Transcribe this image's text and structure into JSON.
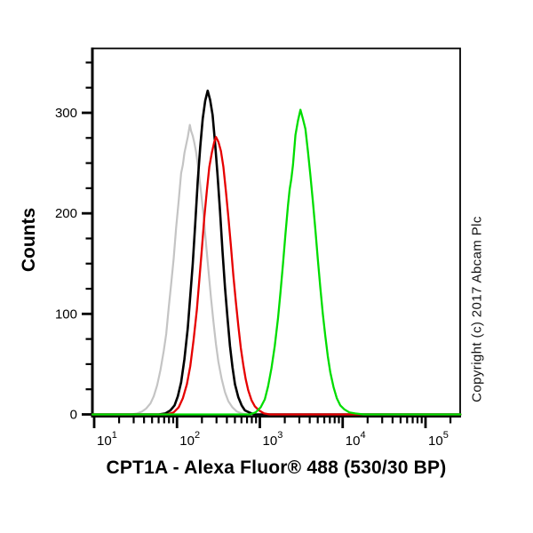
{
  "figure": {
    "copyright": "Copyright (c) 2017 Abcam Plc",
    "background_color": "#ffffff",
    "axis_color": "#000000"
  },
  "chart_data": {
    "type": "line",
    "subtype": "flow-cytometry-histogram-overlay",
    "title": "",
    "xlabel": "CPT1A - Alexa Fluor® 488 (530/30 BP)",
    "ylabel": "Counts",
    "x_scale": "log10",
    "x_range_log10": [
      0.97,
      5.42
    ],
    "x_major_ticks_exponents": [
      1,
      2,
      3,
      4,
      5
    ],
    "x_tick_base": "10",
    "x_minor_ticks": "log-decade-2-to-9",
    "ylim": [
      0,
      365
    ],
    "y_major_ticks": [
      0,
      100,
      200,
      300
    ],
    "y_minor_step": 25,
    "y_minor_max": 350,
    "grid": false,
    "legend": "none",
    "series": [
      {
        "name": "gray",
        "color": "#c4c4c4",
        "stroke_width": 2.2,
        "peak": {
          "x_value": 140,
          "counts": 288
        },
        "points": [
          [
            0.98,
            0
          ],
          [
            1.45,
            0
          ],
          [
            1.52,
            1
          ],
          [
            1.58,
            3
          ],
          [
            1.63,
            6
          ],
          [
            1.68,
            11
          ],
          [
            1.72,
            18
          ],
          [
            1.76,
            29
          ],
          [
            1.8,
            44
          ],
          [
            1.84,
            63
          ],
          [
            1.87,
            80
          ],
          [
            1.9,
            106
          ],
          [
            1.93,
            130
          ],
          [
            1.96,
            155
          ],
          [
            1.99,
            186
          ],
          [
            2.02,
            212
          ],
          [
            2.05,
            240
          ],
          [
            2.07,
            248
          ],
          [
            2.09,
            260
          ],
          [
            2.11,
            268
          ],
          [
            2.13,
            276
          ],
          [
            2.155,
            288
          ],
          [
            2.17,
            282
          ],
          [
            2.19,
            277
          ],
          [
            2.21,
            270
          ],
          [
            2.23,
            261
          ],
          [
            2.26,
            243
          ],
          [
            2.29,
            221
          ],
          [
            2.32,
            198
          ],
          [
            2.35,
            170
          ],
          [
            2.38,
            143
          ],
          [
            2.41,
            116
          ],
          [
            2.44,
            92
          ],
          [
            2.47,
            70
          ],
          [
            2.5,
            52
          ],
          [
            2.54,
            35
          ],
          [
            2.58,
            22
          ],
          [
            2.62,
            13
          ],
          [
            2.67,
            7
          ],
          [
            2.72,
            3
          ],
          [
            2.78,
            1
          ],
          [
            2.85,
            0
          ],
          [
            5.42,
            0
          ]
        ]
      },
      {
        "name": "black",
        "color": "#000000",
        "stroke_width": 2.6,
        "peak": {
          "x_value": 230,
          "counts": 322
        },
        "points": [
          [
            0.98,
            0
          ],
          [
            1.78,
            0
          ],
          [
            1.86,
            1
          ],
          [
            1.92,
            4
          ],
          [
            1.97,
            9
          ],
          [
            2.01,
            18
          ],
          [
            2.05,
            32
          ],
          [
            2.09,
            55
          ],
          [
            2.13,
            86
          ],
          [
            2.16,
            118
          ],
          [
            2.19,
            150
          ],
          [
            2.22,
            190
          ],
          [
            2.25,
            232
          ],
          [
            2.28,
            266
          ],
          [
            2.31,
            294
          ],
          [
            2.34,
            312
          ],
          [
            2.37,
            322
          ],
          [
            2.4,
            313
          ],
          [
            2.43,
            298
          ],
          [
            2.46,
            270
          ],
          [
            2.49,
            238
          ],
          [
            2.52,
            202
          ],
          [
            2.55,
            162
          ],
          [
            2.58,
            126
          ],
          [
            2.61,
            96
          ],
          [
            2.64,
            68
          ],
          [
            2.67,
            47
          ],
          [
            2.7,
            30
          ],
          [
            2.74,
            17
          ],
          [
            2.78,
            9
          ],
          [
            2.82,
            4
          ],
          [
            2.87,
            2
          ],
          [
            2.93,
            0
          ],
          [
            5.42,
            0
          ]
        ]
      },
      {
        "name": "red",
        "color": "#e60000",
        "stroke_width": 2.3,
        "peak": {
          "x_value": 295,
          "counts": 276
        },
        "points": [
          [
            0.98,
            0
          ],
          [
            1.88,
            0
          ],
          [
            1.96,
            2
          ],
          [
            2.02,
            7
          ],
          [
            2.07,
            16
          ],
          [
            2.12,
            30
          ],
          [
            2.16,
            48
          ],
          [
            2.2,
            74
          ],
          [
            2.24,
            104
          ],
          [
            2.27,
            134
          ],
          [
            2.3,
            164
          ],
          [
            2.33,
            196
          ],
          [
            2.36,
            222
          ],
          [
            2.39,
            246
          ],
          [
            2.42,
            260
          ],
          [
            2.45,
            271
          ],
          [
            2.47,
            276
          ],
          [
            2.5,
            271
          ],
          [
            2.53,
            262
          ],
          [
            2.56,
            246
          ],
          [
            2.59,
            222
          ],
          [
            2.62,
            196
          ],
          [
            2.65,
            168
          ],
          [
            2.68,
            138
          ],
          [
            2.71,
            112
          ],
          [
            2.74,
            88
          ],
          [
            2.77,
            66
          ],
          [
            2.8,
            49
          ],
          [
            2.83,
            35
          ],
          [
            2.86,
            24
          ],
          [
            2.9,
            14
          ],
          [
            2.94,
            8
          ],
          [
            2.99,
            4
          ],
          [
            3.05,
            1
          ],
          [
            3.12,
            0
          ],
          [
            5.42,
            0
          ]
        ]
      },
      {
        "name": "green",
        "color": "#00dd00",
        "stroke_width": 2.3,
        "peak": {
          "x_value": 3000,
          "counts": 303
        },
        "points": [
          [
            0.98,
            0
          ],
          [
            2.88,
            0
          ],
          [
            2.95,
            2
          ],
          [
            3.01,
            7
          ],
          [
            3.06,
            15
          ],
          [
            3.1,
            28
          ],
          [
            3.14,
            46
          ],
          [
            3.18,
            68
          ],
          [
            3.22,
            96
          ],
          [
            3.25,
            122
          ],
          [
            3.28,
            150
          ],
          [
            3.31,
            180
          ],
          [
            3.34,
            208
          ],
          [
            3.36,
            224
          ],
          [
            3.38,
            234
          ],
          [
            3.4,
            248
          ],
          [
            3.43,
            278
          ],
          [
            3.46,
            292
          ],
          [
            3.49,
            303
          ],
          [
            3.52,
            294
          ],
          [
            3.55,
            284
          ],
          [
            3.58,
            262
          ],
          [
            3.61,
            238
          ],
          [
            3.64,
            212
          ],
          [
            3.67,
            184
          ],
          [
            3.7,
            154
          ],
          [
            3.73,
            126
          ],
          [
            3.76,
            100
          ],
          [
            3.79,
            78
          ],
          [
            3.82,
            58
          ],
          [
            3.85,
            42
          ],
          [
            3.89,
            27
          ],
          [
            3.93,
            16
          ],
          [
            3.97,
            9
          ],
          [
            4.02,
            5
          ],
          [
            4.08,
            2
          ],
          [
            4.15,
            1
          ],
          [
            4.25,
            0
          ],
          [
            5.42,
            0
          ]
        ]
      }
    ]
  }
}
